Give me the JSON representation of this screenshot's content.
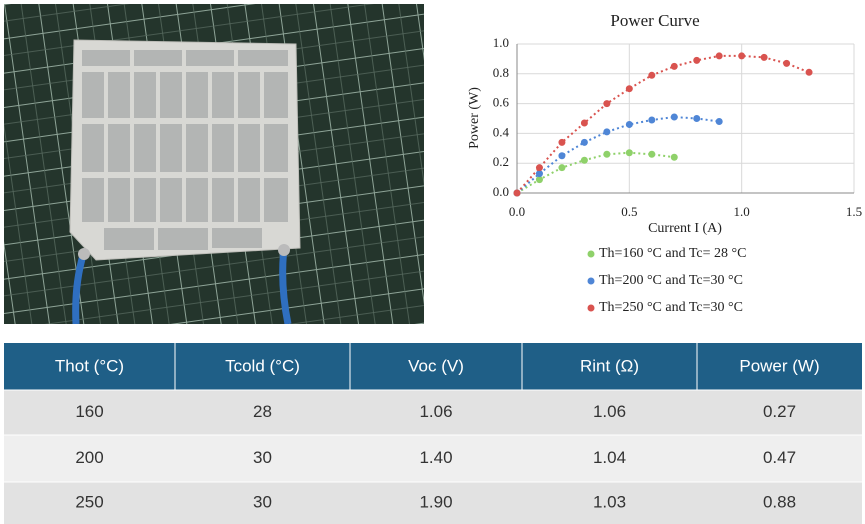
{
  "chart_data": {
    "type": "scatter",
    "title": "Power Curve",
    "x_label": "Current I (A)",
    "y_label": "Power (W)",
    "xlim": [
      0,
      1.5
    ],
    "xticks": [
      {
        "value": 0,
        "label": "0.0"
      },
      {
        "value": 0.5,
        "label": "0.5"
      },
      {
        "value": 1,
        "label": "1.0"
      },
      {
        "value": 1.5,
        "label": "1.5"
      }
    ],
    "ylim": [
      0,
      1
    ],
    "yticks": [
      {
        "value": 0,
        "label": "0.0"
      },
      0.2,
      0.4,
      0.6,
      0.8,
      {
        "value": 1,
        "label": "1.0"
      }
    ],
    "series": [
      {
        "name": "Th=160 °C and Tc= 28 °C",
        "color": "#8fd16a",
        "x": [
          0,
          0.1,
          0.2,
          0.3,
          0.4,
          0.5,
          0.6,
          0.7
        ],
        "values": [
          0,
          0.09,
          0.17,
          0.22,
          0.26,
          0.27,
          0.26,
          0.24
        ]
      },
      {
        "name": "Th=200 °C and Tc=30 °C",
        "color": "#4f86d6",
        "x": [
          0,
          0.1,
          0.2,
          0.3,
          0.4,
          0.5,
          0.6,
          0.7,
          0.8,
          0.9
        ],
        "values": [
          0,
          0.13,
          0.25,
          0.34,
          0.41,
          0.46,
          0.49,
          0.51,
          0.5,
          0.48
        ]
      },
      {
        "name": "Th=250 °C and Tc=30 °C",
        "color": "#d9534f",
        "x": [
          0,
          0.1,
          0.2,
          0.3,
          0.4,
          0.5,
          0.6,
          0.7,
          0.8,
          0.9,
          1,
          1.1,
          1.2,
          1.3
        ],
        "values": [
          0,
          0.17,
          0.34,
          0.47,
          0.6,
          0.7,
          0.79,
          0.85,
          0.89,
          0.92,
          0.92,
          0.91,
          0.87,
          0.81
        ]
      }
    ]
  },
  "table": {
    "header": [
      "Thot (°C)",
      "Tcold (°C)",
      "Voc (V)",
      "Rint (Ω)",
      "Power (W)"
    ],
    "rows": [
      [
        "160",
        "28",
        "1.06",
        "1.06",
        "0.27"
      ],
      [
        "200",
        "30",
        "1.40",
        "1.04",
        "0.47"
      ],
      [
        "250",
        "30",
        "1.90",
        "1.03",
        "0.88"
      ]
    ]
  }
}
